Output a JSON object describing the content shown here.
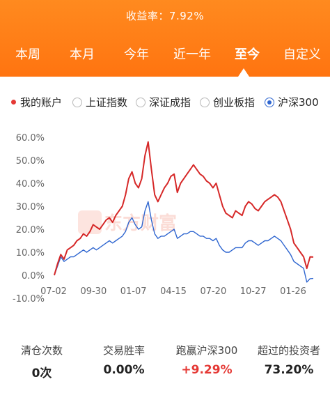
{
  "header": {
    "return_label": "收益率：",
    "return_value": "7.92%"
  },
  "tabs": [
    {
      "label": "本周",
      "active": false
    },
    {
      "label": "本月",
      "active": false
    },
    {
      "label": "今年",
      "active": false
    },
    {
      "label": "近一年",
      "active": false
    },
    {
      "label": "至今",
      "active": true
    },
    {
      "label": "自定义",
      "active": false
    }
  ],
  "legend": {
    "my_account": "我的账户",
    "options": [
      {
        "label": "上证指数",
        "selected": false
      },
      {
        "label": "深证成指",
        "selected": false
      },
      {
        "label": "创业板指",
        "selected": false
      },
      {
        "label": "沪深300",
        "selected": true
      }
    ]
  },
  "colors": {
    "accent": "#ff7a14",
    "account_line": "#d62828",
    "index_line": "#2f66d0",
    "positive": "#e53935"
  },
  "chart_data": {
    "type": "line",
    "x_tick_labels": [
      "07-02",
      "09-30",
      "01-07",
      "04-15",
      "07-20",
      "10-27",
      "01-26"
    ],
    "y_tick_labels": [
      "60.0%",
      "50.0%",
      "40.0%",
      "30.0%",
      "20.0%",
      "10.0%",
      "0.0%",
      "-10.0%"
    ],
    "ylim": [
      -10,
      60
    ],
    "grid": false,
    "watermark": "东方财富",
    "series": [
      {
        "name": "我的账户",
        "color": "#d62828",
        "values": [
          0,
          5,
          9,
          7,
          11,
          12,
          13,
          15,
          16,
          18,
          17,
          19,
          22,
          21,
          20,
          22,
          24,
          25,
          23,
          26,
          28,
          30,
          35,
          42,
          45,
          40,
          38,
          42,
          52,
          58,
          46,
          35,
          32,
          35,
          38,
          40,
          43,
          44,
          36,
          40,
          42,
          44,
          46,
          48,
          46,
          44,
          43,
          41,
          40,
          38,
          40,
          35,
          30,
          27,
          26,
          25,
          28,
          27,
          26,
          30,
          32,
          31,
          29,
          28,
          30,
          32,
          33,
          34,
          35,
          34,
          32,
          28,
          24,
          20,
          14,
          12,
          10,
          8,
          3,
          8,
          7.9
        ]
      },
      {
        "name": "沪深300",
        "color": "#2f66d0",
        "values": [
          0,
          4,
          8,
          6,
          7,
          8,
          8,
          9,
          10,
          11,
          10,
          11,
          12,
          11,
          12,
          13,
          14,
          15,
          14,
          15,
          16,
          17,
          19,
          23,
          25,
          22,
          20,
          21,
          28,
          32,
          24,
          18,
          16,
          17,
          17,
          18,
          19,
          20,
          16,
          17,
          18,
          18,
          19,
          19,
          18,
          17,
          17,
          16,
          16,
          15,
          16,
          13,
          11,
          10,
          10,
          11,
          12,
          12,
          12,
          14,
          15,
          15,
          14,
          13,
          14,
          15,
          15,
          16,
          17,
          16,
          15,
          13,
          11,
          9,
          6,
          5,
          4,
          3,
          -3,
          -1.5,
          -1.4
        ]
      }
    ]
  },
  "stats": [
    {
      "label": "清仓次数",
      "value": "0次",
      "positive": false
    },
    {
      "label": "交易胜率",
      "value": "0.00%",
      "positive": false
    },
    {
      "label": "跑赢沪深300",
      "value": "+9.29%",
      "positive": true
    },
    {
      "label": "超过的投资者",
      "value": "73.20%",
      "positive": false
    }
  ]
}
